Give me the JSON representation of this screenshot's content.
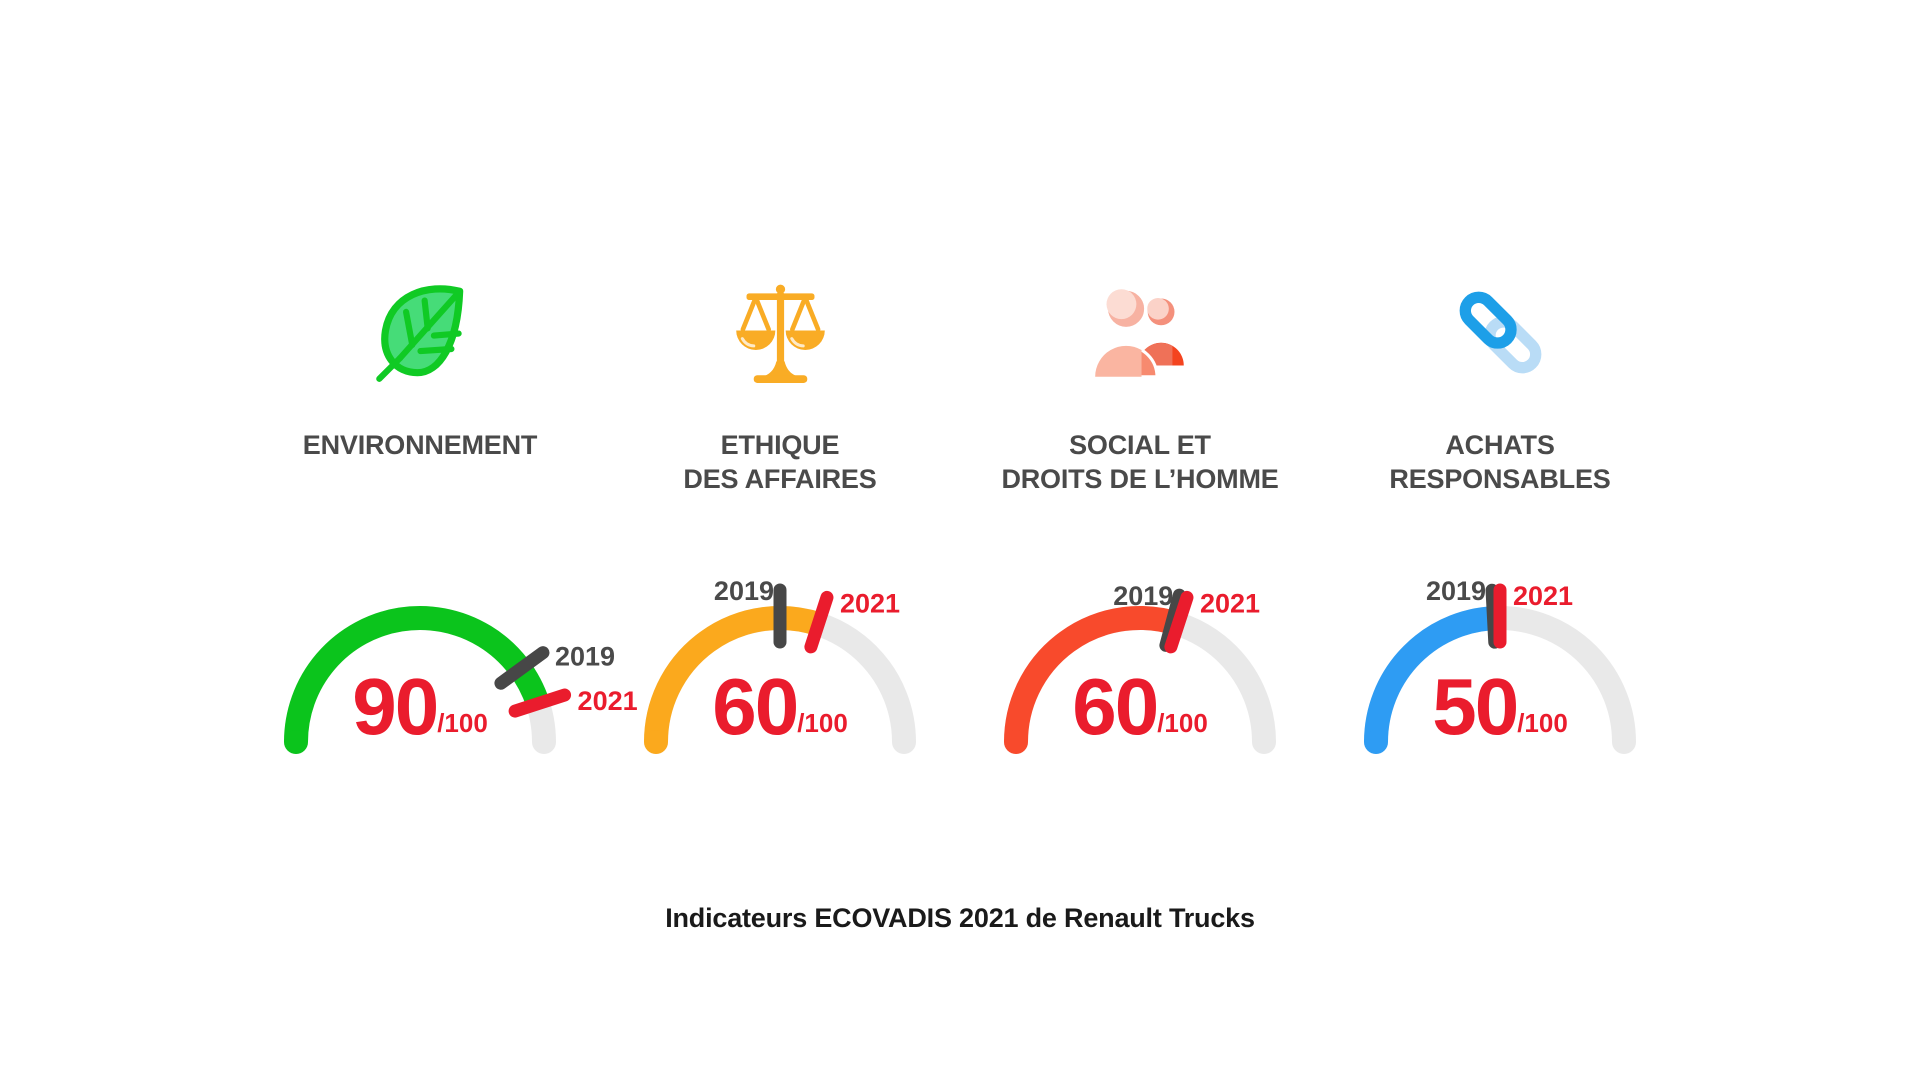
{
  "chart_data": {
    "type": "gauge",
    "title": "Indicateurs ECOVADIS 2021 de Renault Trucks",
    "scale_max": 100,
    "score_suffix": "/100",
    "legend_years": [
      "2019",
      "2021"
    ],
    "gauges": [
      {
        "category_lines": [
          "ENVIRONNEMENT"
        ],
        "icon": "leaf-icon",
        "arc_color": "#0bc41c",
        "scores": {
          "2019": 80,
          "2021": 90
        },
        "displayed_score": "90"
      },
      {
        "category_lines": [
          "ETHIQUE",
          "DES AFFAIRES"
        ],
        "icon": "scales-icon",
        "arc_color": "#fba91d",
        "scores": {
          "2019": 50,
          "2021": 60
        },
        "displayed_score": "60"
      },
      {
        "category_lines": [
          "SOCIAL ET",
          "DROITS DE L’HOMME"
        ],
        "icon": "people-icon",
        "arc_color": "#f84a2c",
        "scores": {
          "2019": 60,
          "2021": 60
        },
        "displayed_score": "60"
      },
      {
        "category_lines": [
          "ACHATS",
          "RESPONSABLES"
        ],
        "icon": "chain-icon",
        "arc_color": "#2e9cf3",
        "scores": {
          "2019": 50,
          "2021": 50
        },
        "displayed_score": "50"
      }
    ],
    "colors": {
      "track_gray": "#e9e9e9",
      "score_red": "#ea1c2d",
      "tick_2019": "#474747",
      "tick_2021": "#ea1c2d",
      "year_2019_text": "#4a4a4a",
      "year_2021_text": "#ea1c2d",
      "category_label": "#4a4a4a",
      "caption": "#1a1a1a"
    }
  }
}
